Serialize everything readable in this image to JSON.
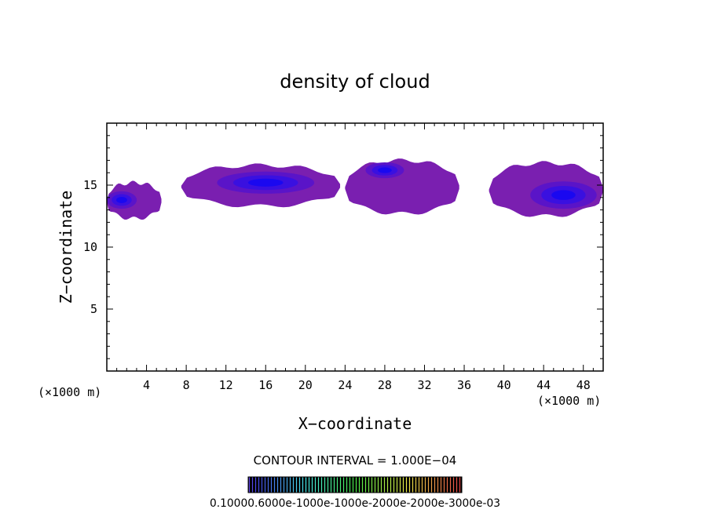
{
  "chart_data": {
    "type": "heatmap",
    "title": "density of cloud",
    "xlabel": "X−coordinate",
    "ylabel": "Z−coordinate",
    "x_unit_left": "(×1000 m)",
    "x_unit_right": "(×1000 m)",
    "xlim": [
      0,
      50
    ],
    "ylim": [
      0,
      20
    ],
    "xticks": [
      4,
      8,
      12,
      16,
      20,
      24,
      28,
      32,
      36,
      40,
      44,
      48
    ],
    "yticks": [
      5,
      10,
      15
    ],
    "contour_interval_label": "CONTOUR INTERVAL = 1.000E−04",
    "colorbar_labels_text": "0.10000.6000e-1000e-1000e-2000e-2000e-3000e-03",
    "colors": {
      "outer": "#7a1fb0",
      "mid": "#5a14c8",
      "inner": "#3a10e0",
      "core": "#1a08f0"
    },
    "clouds": [
      {
        "name": "cloud-left-edge",
        "x": [
          0,
          5.5
        ],
        "z": [
          12.3,
          15.2
        ],
        "peak_x": 1.5,
        "peak_z": 13.8,
        "intensity": 0.9
      },
      {
        "name": "cloud-center",
        "x": [
          7.5,
          23.5
        ],
        "z": [
          13.3,
          16.6
        ],
        "peak_x": 16,
        "peak_z": 15.2,
        "intensity": 1.0
      },
      {
        "name": "cloud-mid-right",
        "x": [
          24,
          35.5
        ],
        "z": [
          12.7,
          17.0
        ],
        "peak_x": 28,
        "peak_z": 16.2,
        "intensity": 0.55
      },
      {
        "name": "cloud-right",
        "x": [
          38.5,
          50
        ],
        "z": [
          12.5,
          16.8
        ],
        "peak_x": 46,
        "peak_z": 14.2,
        "intensity": 0.95
      }
    ]
  }
}
